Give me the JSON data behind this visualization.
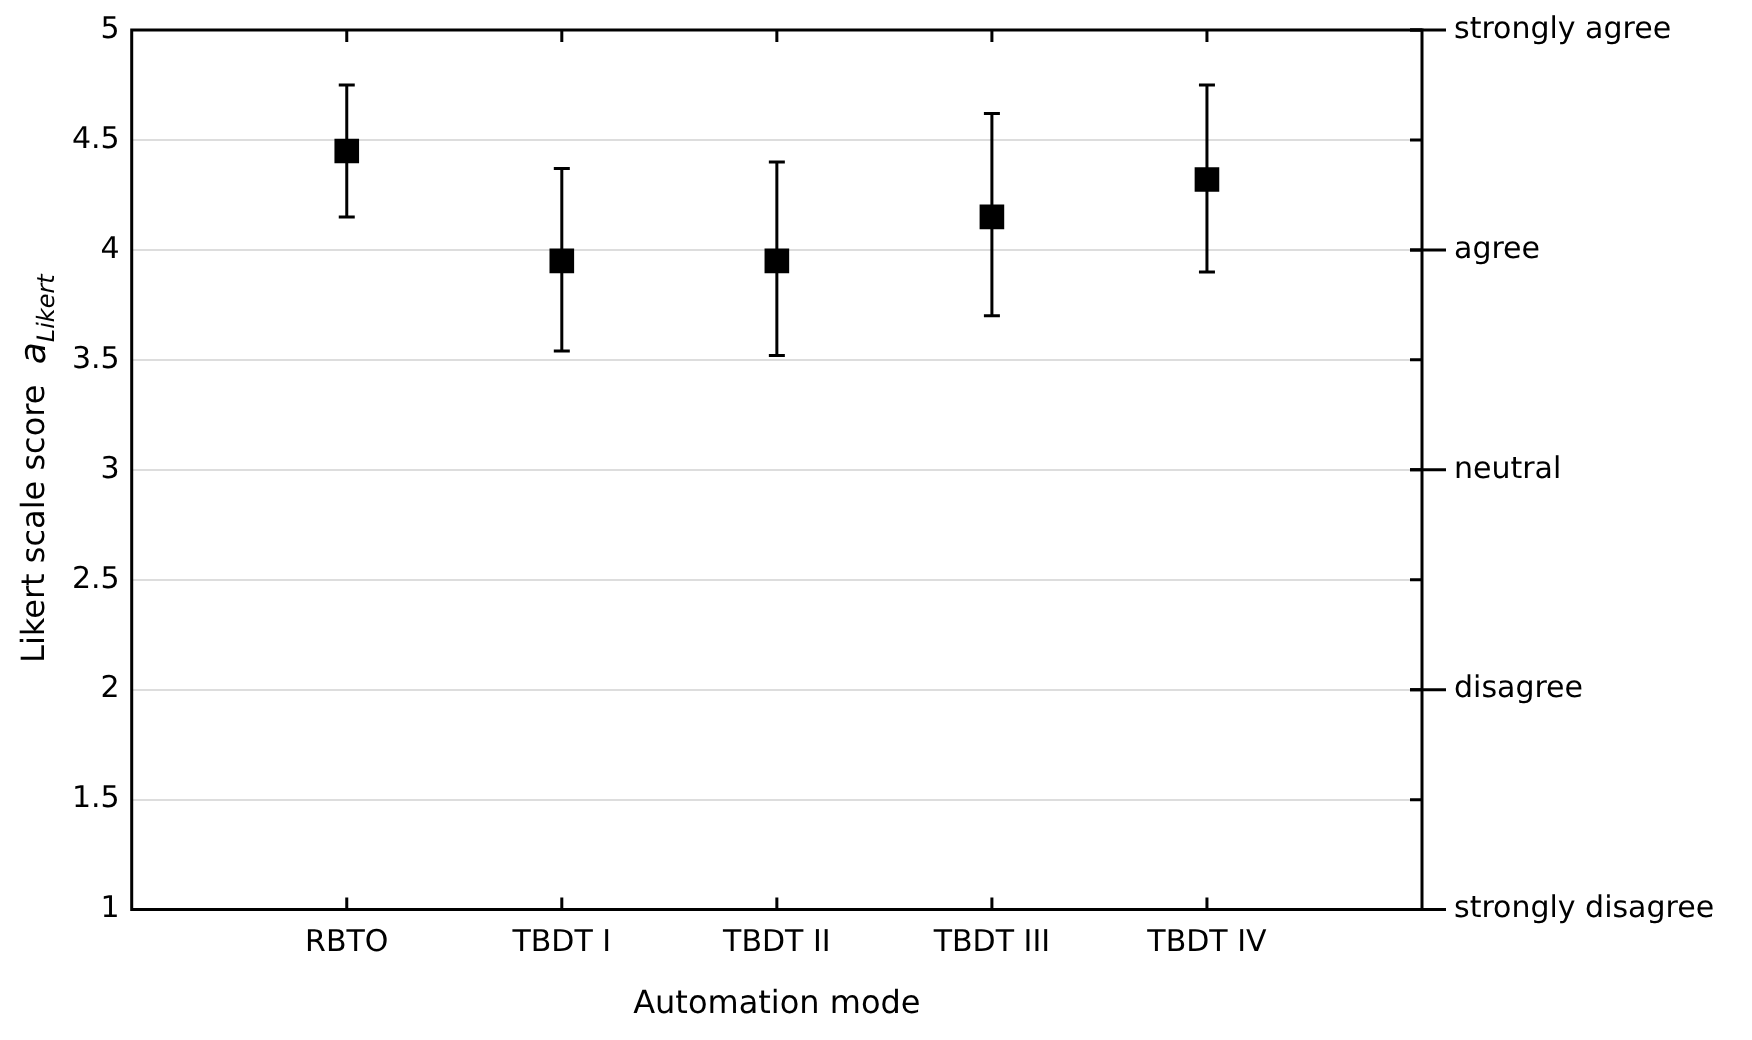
{
  "chart_data": {
    "type": "scatter",
    "xlabel": "Automation mode",
    "ylabel": "Likert scale score  a$_{Likert}$",
    "categories": [
      "RBTO",
      "TBDT I",
      "TBDT II",
      "TBDT III",
      "TBDT IV"
    ],
    "values": [
      4.45,
      3.95,
      3.95,
      4.15,
      4.32
    ],
    "errors": [
      [
        4.15,
        4.75
      ],
      [
        3.54,
        4.37
      ],
      [
        3.52,
        4.4
      ],
      [
        3.7,
        4.62
      ],
      [
        3.9,
        4.75
      ]
    ],
    "color": "#000000",
    "marker": "square",
    "ylim": [
      1,
      5
    ],
    "yticks": [
      1,
      1.5,
      2,
      2.5,
      3,
      3.5,
      4,
      4.5,
      5
    ],
    "annotations": [
      "strongly agree",
      "agree",
      "neutral",
      "disagree",
      "strongly disagree"
    ],
    "grid": "y",
    "legend": false
  }
}
